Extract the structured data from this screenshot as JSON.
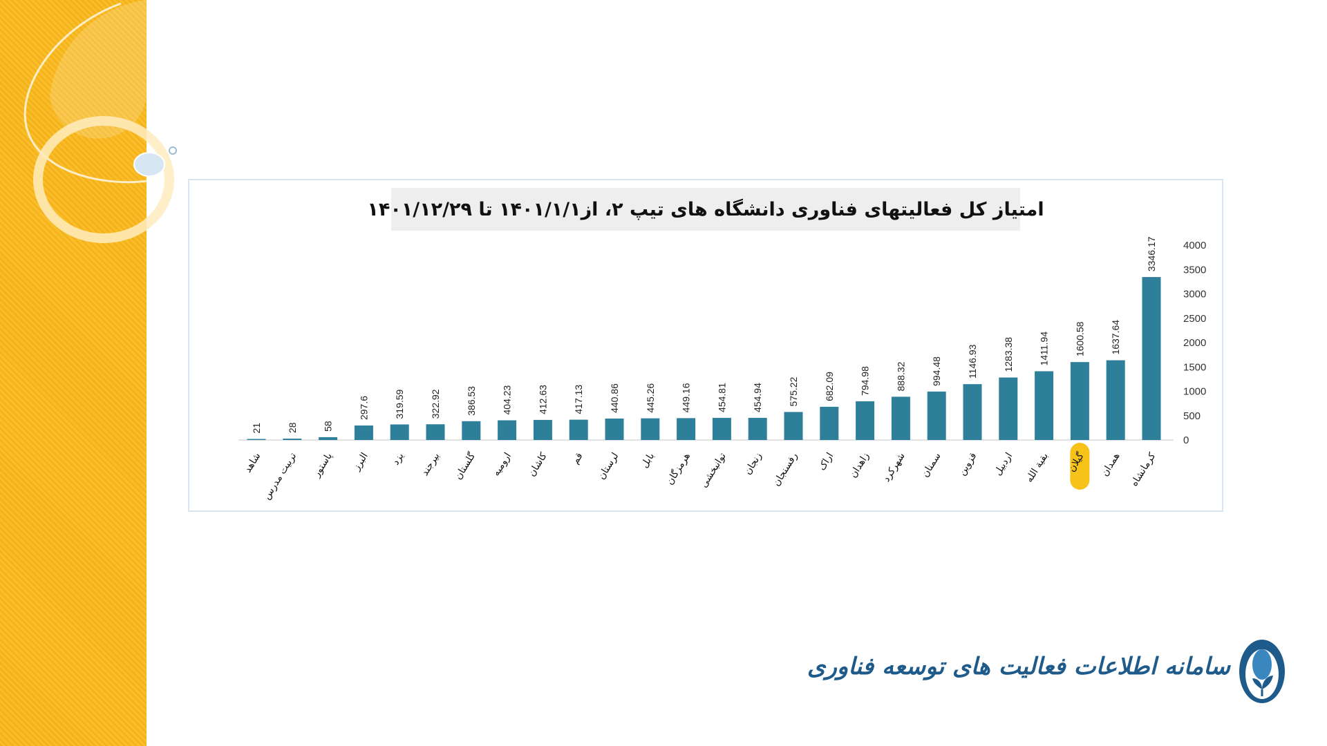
{
  "title": "امتیاز کل فعالیتهای فناوری دانشگاه های تیپ ۲، از۱۴۰۱/۱/۱ تا ۱۴۰۱/۱۲/۲۹",
  "logo_text": "سامانه اطلاعات فعالیت های توسعه فناوری",
  "colors": {
    "bar": "#2e7f99",
    "highlight": "#f7c21a",
    "accent_band": "#f5b21a"
  },
  "chart_data": {
    "type": "bar",
    "title": "امتیاز کل فعالیتهای فناوری دانشگاه های تیپ ۲، از۱۴۰۱/۱/۱ تا ۱۴۰۱/۱۲/۲۹",
    "categories": [
      "شاهد",
      "تربیت مدرس",
      "پاستور",
      "البرز",
      "یزد",
      "بیرجند",
      "گلستان",
      "ارومیه",
      "کاشان",
      "قم",
      "لرستان",
      "بابل",
      "هرمزگان",
      "توانبخشی",
      "زنجان",
      "رفسنجان",
      "اراک",
      "زاهدان",
      "شهرکرد",
      "سمنان",
      "قزوین",
      "اردبیل",
      "بقیة الله",
      "گیلان",
      "همدان",
      "کرمانشاه"
    ],
    "values": [
      21,
      28,
      58,
      297.6,
      319.59,
      322.92,
      386.53,
      404.23,
      412.63,
      417.13,
      440.86,
      445.26,
      449.16,
      454.81,
      454.94,
      575.22,
      682.09,
      794.98,
      888.32,
      994.48,
      1146.93,
      1283.38,
      1411.94,
      1600.58,
      1637.64,
      3346.17
    ],
    "value_labels": [
      "21",
      "28",
      "58",
      "297.6",
      "319.59",
      "322.92",
      "386.53",
      "404.23",
      "412.63",
      "417.13",
      "440.86",
      "445.26",
      "449.16",
      "454.81",
      "454.94",
      "575.22",
      "682.09",
      "794.98",
      "888.32",
      "994.48",
      "1146.93",
      "1283.38",
      "1411.94",
      "1600.58",
      "1637.64",
      "3346.17"
    ],
    "highlight_category": "گیلان",
    "y_ticks": [
      "0",
      "500",
      "1000",
      "1500",
      "2000",
      "2500",
      "3000",
      "3500",
      "4000"
    ],
    "ylim": [
      0,
      4000
    ],
    "y_axis_side": "right",
    "grid": false,
    "legend": "none"
  }
}
